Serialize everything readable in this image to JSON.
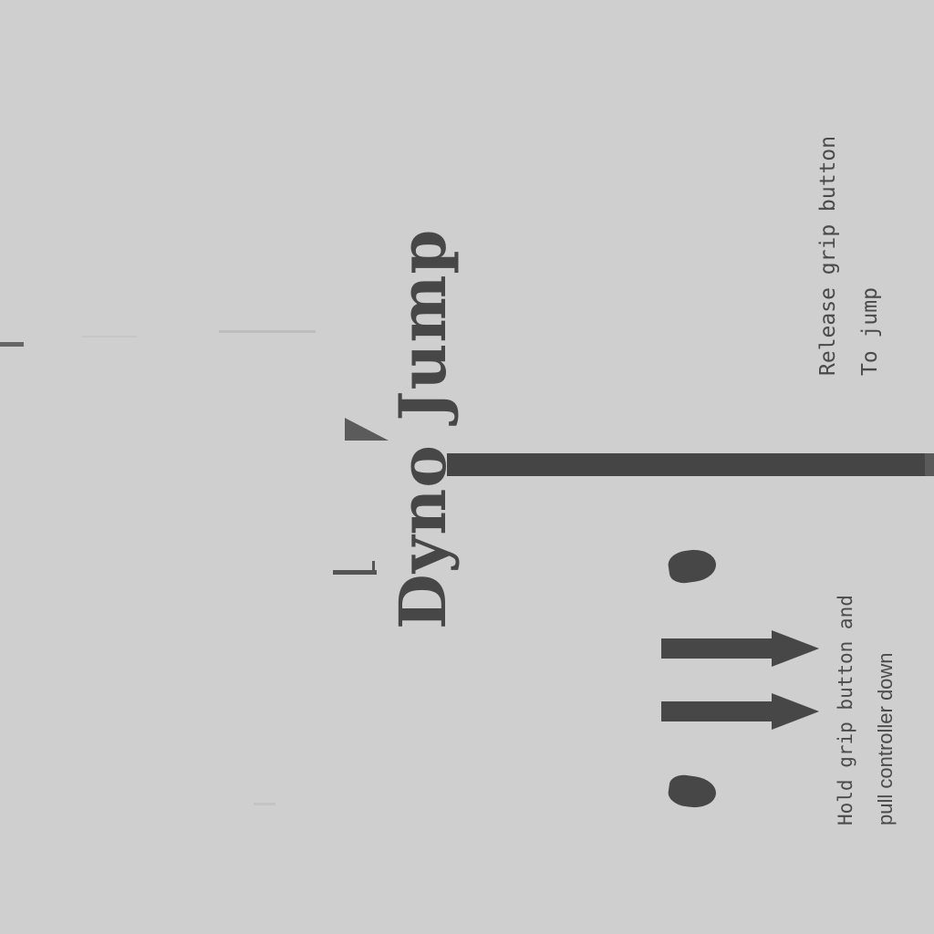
{
  "title": "Dyno Jump",
  "release_instruction": {
    "line1": "Release grip button",
    "line2": "To jump"
  },
  "hold_instruction": {
    "line1": "Hold grip button and",
    "line2": "pull controller down"
  },
  "colors": {
    "background": "#cfcfcf",
    "foreground": "#474747"
  }
}
